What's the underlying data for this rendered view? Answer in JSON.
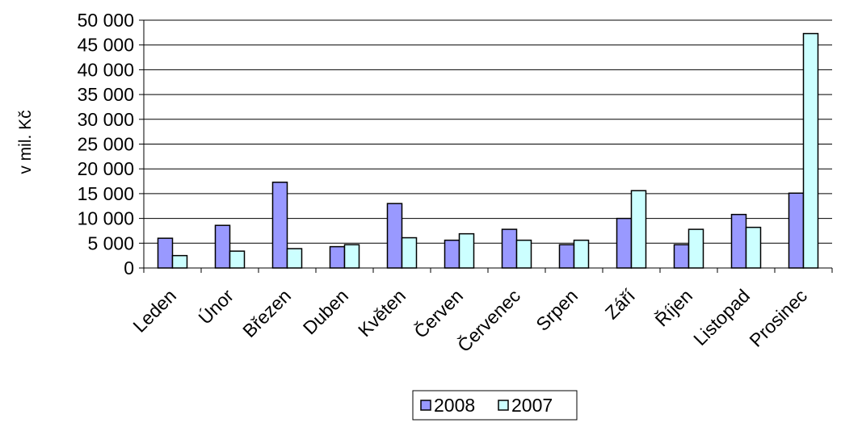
{
  "chart_data": {
    "type": "bar",
    "title": "",
    "xlabel": "",
    "ylabel": "v mil. Kč",
    "ylim": [
      0,
      50000
    ],
    "ytick_step": 5000,
    "ytick_labels": [
      "0",
      "5 000",
      "10 000",
      "15 000",
      "20 000",
      "25 000",
      "30 000",
      "35 000",
      "40 000",
      "45 000",
      "50 000"
    ],
    "grid": true,
    "legend_position": "bottom",
    "categories": [
      "Leden",
      "Únor",
      "Březen",
      "Duben",
      "Květen",
      "Červen",
      "Červenec",
      "Srpen",
      "Září",
      "Říjen",
      "Listopad",
      "Prosinec"
    ],
    "series": [
      {
        "name": "2008",
        "color": "#9999ff",
        "values": [
          6000,
          8600,
          17300,
          4300,
          13000,
          5600,
          7800,
          4700,
          10000,
          4700,
          10800,
          15100
        ]
      },
      {
        "name": "2007",
        "color": "#ccffff",
        "values": [
          2500,
          3400,
          3900,
          4700,
          6100,
          6900,
          5600,
          5600,
          15600,
          7800,
          8200,
          47300
        ]
      }
    ]
  }
}
